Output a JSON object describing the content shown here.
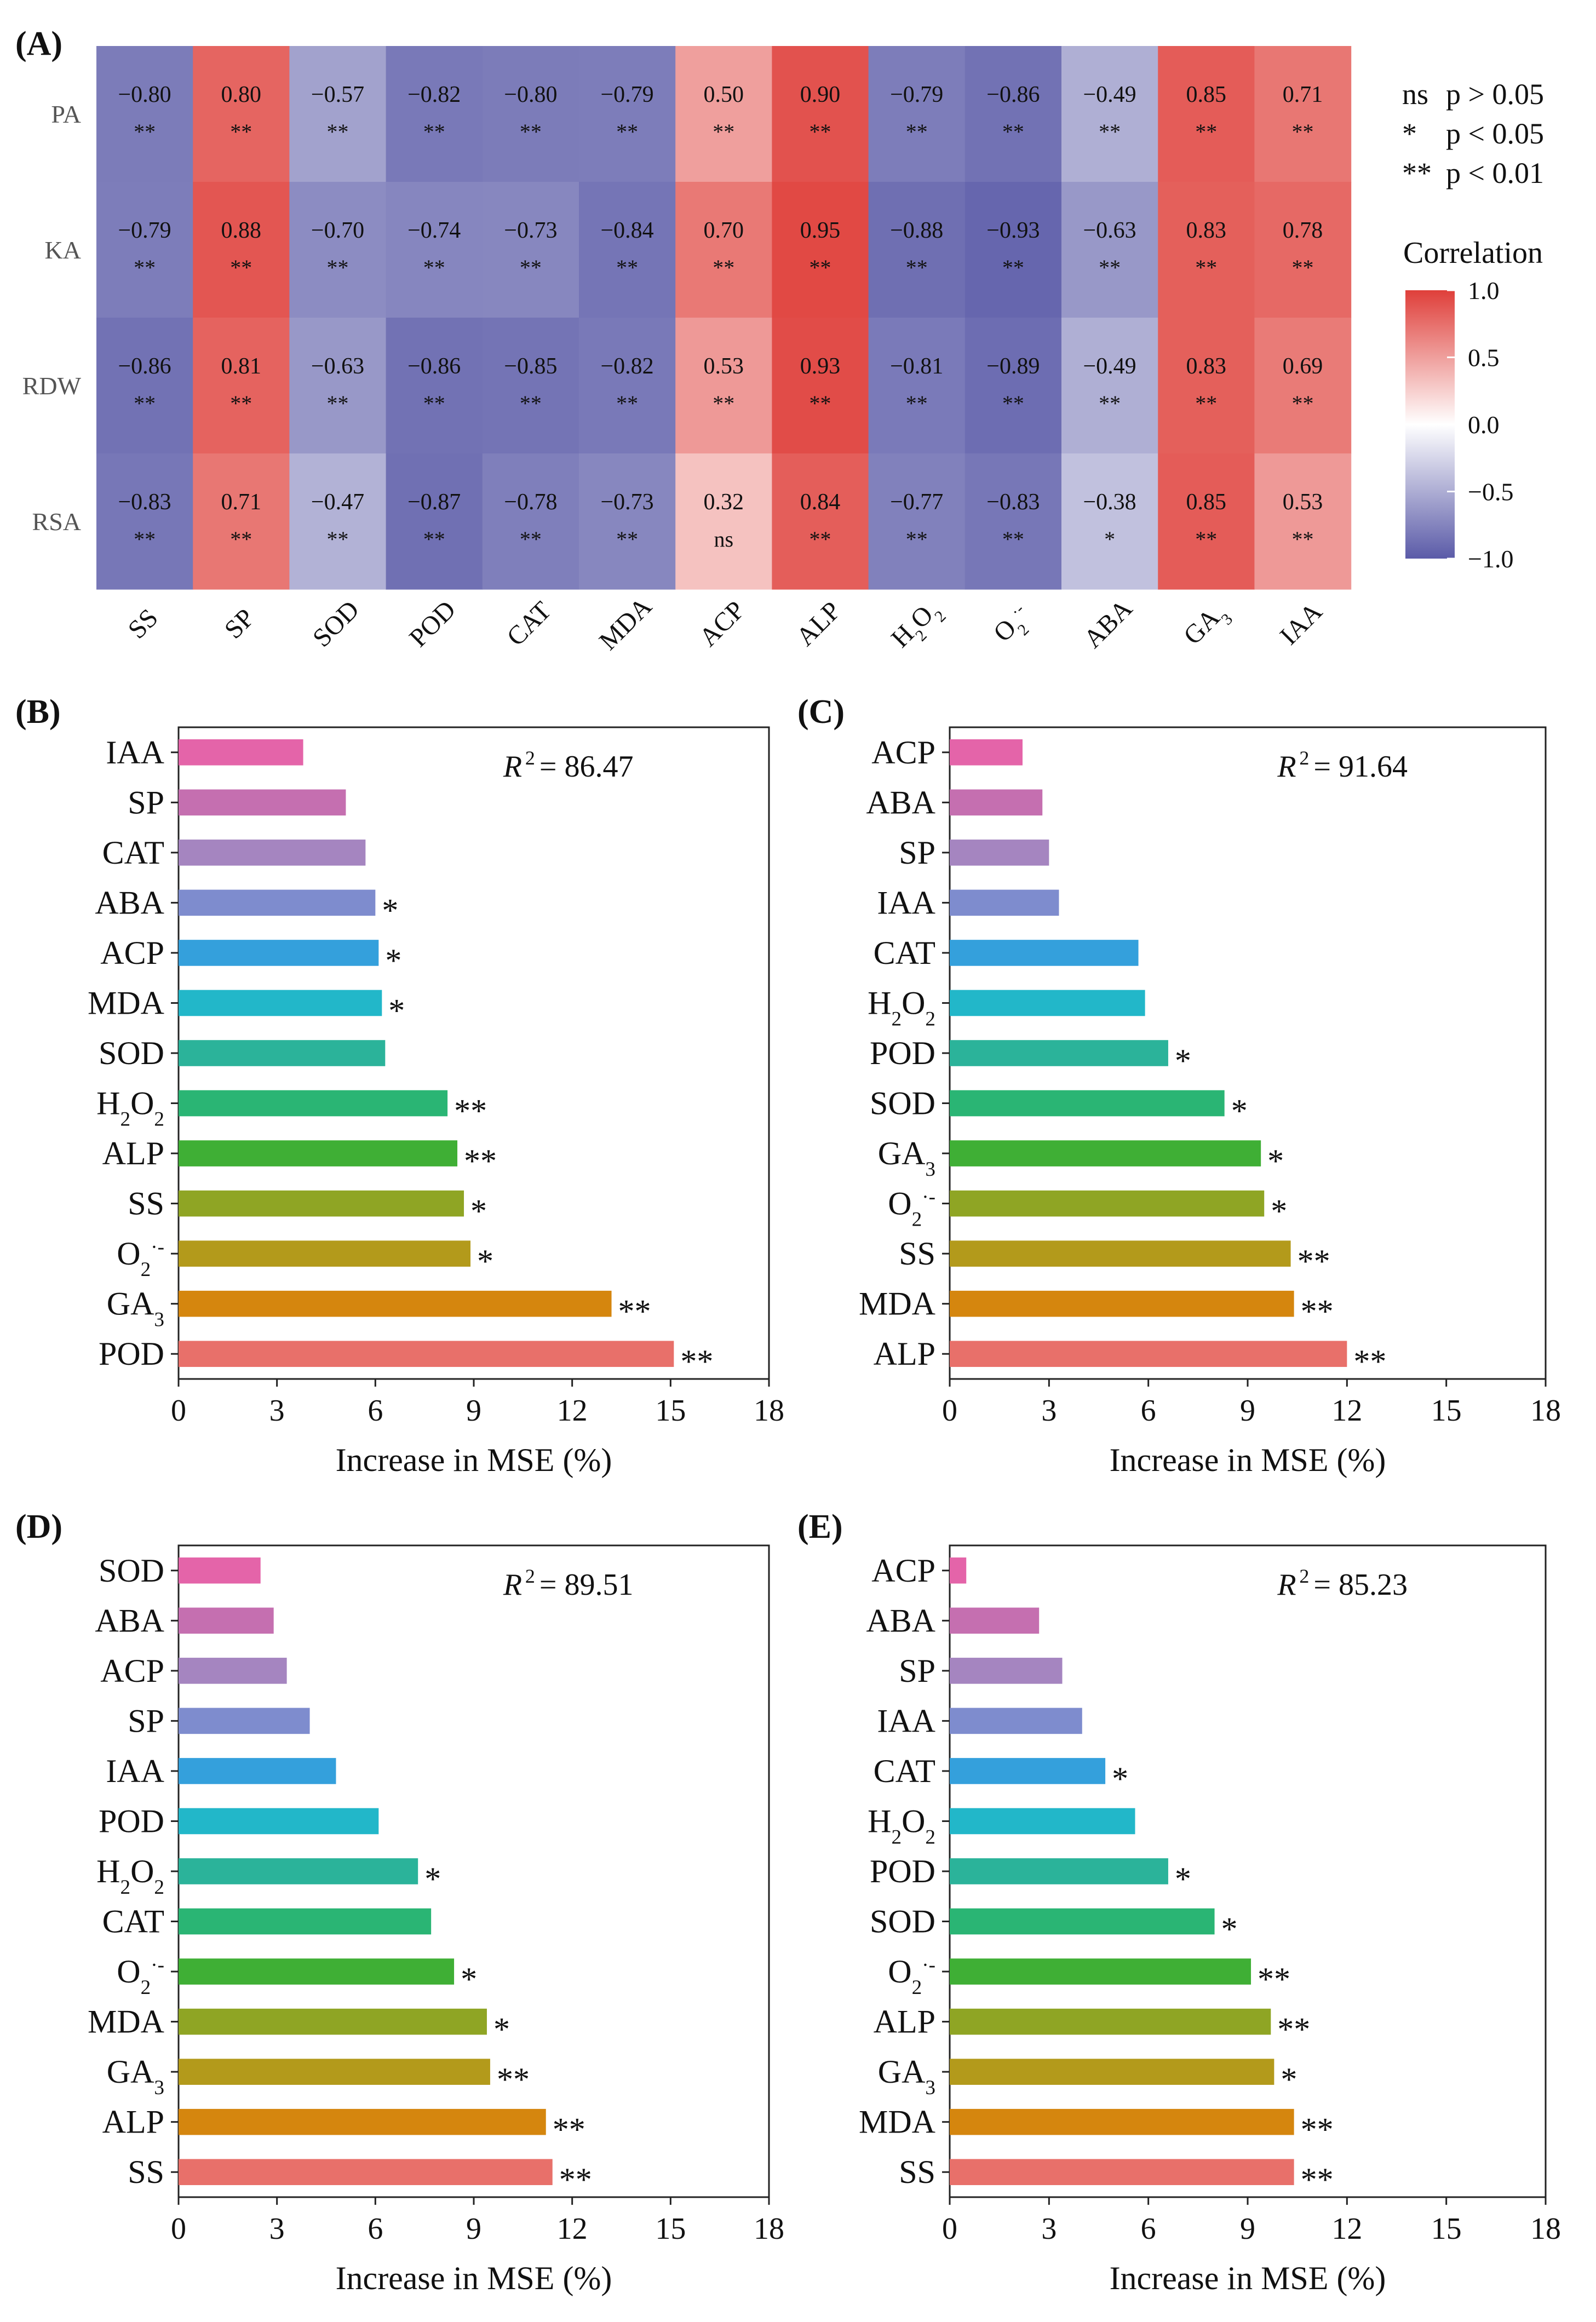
{
  "figure": {
    "panel_labels": [
      "(A)",
      "(B)",
      "(C)",
      "(D)",
      "(E)"
    ]
  },
  "chart_data": [
    {
      "panel": "(A)",
      "type": "heatmap",
      "rows": [
        "PA",
        "KA",
        "RDW",
        "RSA"
      ],
      "columns": [
        "SS",
        "SP",
        "SOD",
        "POD",
        "CAT",
        "MDA",
        "ACP",
        "ALP",
        "H2O2",
        "O2·-",
        "ABA",
        "GA3",
        "IAA"
      ],
      "values": [
        [
          -0.8,
          0.8,
          -0.57,
          -0.82,
          -0.8,
          -0.79,
          0.5,
          0.9,
          -0.79,
          -0.86,
          -0.49,
          0.85,
          0.71
        ],
        [
          -0.79,
          0.88,
          -0.7,
          -0.74,
          -0.73,
          -0.84,
          0.7,
          0.95,
          -0.88,
          -0.93,
          -0.63,
          0.83,
          0.78
        ],
        [
          -0.86,
          0.81,
          -0.63,
          -0.86,
          -0.85,
          -0.82,
          0.53,
          0.93,
          -0.81,
          -0.89,
          -0.49,
          0.83,
          0.69
        ],
        [
          -0.83,
          0.71,
          -0.47,
          -0.87,
          -0.78,
          -0.73,
          0.32,
          0.84,
          -0.77,
          -0.83,
          -0.38,
          0.85,
          0.53
        ]
      ],
      "value_labels": [
        [
          "−0.80",
          "0.80",
          "−0.57",
          "−0.82",
          "−0.80",
          "−0.79",
          "0.50",
          "0.90",
          "−0.79",
          "−0.86",
          "−0.49",
          "0.85",
          "0.71"
        ],
        [
          "−0.79",
          "0.88",
          "−0.70",
          "−0.74",
          "−0.73",
          "−0.84",
          "0.70",
          "0.95",
          "−0.88",
          "−0.93",
          "−0.63",
          "0.83",
          "0.78"
        ],
        [
          "−0.86",
          "0.81",
          "−0.63",
          "−0.86",
          "−0.85",
          "−0.82",
          "0.53",
          "0.93",
          "−0.81",
          "−0.89",
          "−0.49",
          "0.83",
          "0.69"
        ],
        [
          "−0.83",
          "0.71",
          "−0.47",
          "−0.87",
          "−0.78",
          "−0.73",
          "0.32",
          "0.84",
          "−0.77",
          "−0.83",
          "−0.38",
          "0.85",
          "0.53"
        ]
      ],
      "significance": [
        [
          "**",
          "**",
          "**",
          "**",
          "**",
          "**",
          "**",
          "**",
          "**",
          "**",
          "**",
          "**",
          "**"
        ],
        [
          "**",
          "**",
          "**",
          "**",
          "**",
          "**",
          "**",
          "**",
          "**",
          "**",
          "**",
          "**",
          "**"
        ],
        [
          "**",
          "**",
          "**",
          "**",
          "**",
          "**",
          "**",
          "**",
          "**",
          "**",
          "**",
          "**",
          "**"
        ],
        [
          "**",
          "**",
          "**",
          "**",
          "**",
          "**",
          "ns",
          "**",
          "**",
          "**",
          "*",
          "**",
          "**"
        ]
      ],
      "significance_legend": [
        {
          "symbol": "ns",
          "text": "p > 0.05"
        },
        {
          "symbol": "*",
          "text": "p < 0.05"
        },
        {
          "symbol": "**",
          "text": "p < 0.01"
        }
      ],
      "colorbar": {
        "title": "Correlation",
        "range": [
          -1.0,
          1.0
        ],
        "ticks": [
          "1.0",
          "0.5",
          "0.0",
          "−0.5",
          "−1.0"
        ],
        "tick_values": [
          1.0,
          0.5,
          0.0,
          -0.5,
          -1.0
        ],
        "colors": {
          "low": "#5b5ba8",
          "mid": "#ffffff",
          "high": "#df3f3a"
        }
      }
    },
    {
      "panel": "(B)",
      "type": "bar",
      "orientation": "horizontal",
      "categories": [
        "POD",
        "GA3",
        "O2·-",
        "SS",
        "ALP",
        "H2O2",
        "SOD",
        "MDA",
        "ACP",
        "ABA",
        "CAT",
        "SP",
        "IAA"
      ],
      "values": [
        15.1,
        13.2,
        8.9,
        8.7,
        8.5,
        8.2,
        6.3,
        6.2,
        6.1,
        6.0,
        5.7,
        5.1,
        3.8
      ],
      "significance": [
        "**",
        "**",
        "*",
        "*",
        "**",
        "**",
        "",
        "*",
        "*",
        "*",
        "",
        "",
        ""
      ],
      "annotation": {
        "r2_label": "R",
        "r2_sup": "2",
        "r2_value": "= 86.47"
      },
      "xlabel": "Increase in MSE (%)",
      "xlim": [
        0,
        18
      ],
      "xticks": [
        "0",
        "3",
        "6",
        "9",
        "12",
        "15",
        "18"
      ]
    },
    {
      "panel": "(C)",
      "type": "bar",
      "orientation": "horizontal",
      "categories": [
        "ALP",
        "MDA",
        "SS",
        "O2·-",
        "GA3",
        "SOD",
        "POD",
        "H2O2",
        "CAT",
        "IAA",
        "SP",
        "ABA",
        "ACP"
      ],
      "values": [
        12.0,
        10.4,
        10.3,
        9.5,
        9.4,
        8.3,
        6.6,
        5.9,
        5.7,
        3.3,
        3.0,
        2.8,
        2.2
      ],
      "significance": [
        "**",
        "**",
        "**",
        "*",
        "*",
        "*",
        "*",
        "",
        "",
        "",
        "",
        "",
        ""
      ],
      "annotation": {
        "r2_label": "R",
        "r2_sup": "2",
        "r2_value": "= 91.64"
      },
      "xlabel": "Increase in MSE (%)",
      "xlim": [
        0,
        18
      ],
      "xticks": [
        "0",
        "3",
        "6",
        "9",
        "12",
        "15",
        "18"
      ]
    },
    {
      "panel": "(D)",
      "type": "bar",
      "orientation": "horizontal",
      "categories": [
        "SS",
        "ALP",
        "GA3",
        "MDA",
        "O2·-",
        "CAT",
        "H2O2",
        "POD",
        "IAA",
        "SP",
        "ACP",
        "ABA",
        "SOD"
      ],
      "values": [
        11.4,
        11.2,
        9.5,
        9.4,
        8.4,
        7.7,
        7.3,
        6.1,
        4.8,
        4.0,
        3.3,
        2.9,
        2.5
      ],
      "significance": [
        "**",
        "**",
        "**",
        "*",
        "*",
        "",
        "*",
        "",
        "",
        "",
        "",
        "",
        ""
      ],
      "annotation": {
        "r2_label": "R",
        "r2_sup": "2",
        "r2_value": "= 89.51"
      },
      "xlabel": "Increase in MSE (%)",
      "xlim": [
        0,
        18
      ],
      "xticks": [
        "0",
        "3",
        "6",
        "9",
        "12",
        "15",
        "18"
      ]
    },
    {
      "panel": "(E)",
      "type": "bar",
      "orientation": "horizontal",
      "categories": [
        "SS",
        "MDA",
        "GA3",
        "ALP",
        "O2·-",
        "SOD",
        "POD",
        "H2O2",
        "CAT",
        "IAA",
        "SP",
        "ABA",
        "ACP"
      ],
      "values": [
        10.4,
        10.4,
        9.8,
        9.7,
        9.1,
        8.0,
        6.6,
        5.6,
        4.7,
        4.0,
        3.4,
        2.7,
        0.5
      ],
      "significance": [
        "**",
        "**",
        "*",
        "**",
        "**",
        "*",
        "*",
        "",
        "*",
        "",
        "",
        "",
        ""
      ],
      "annotation": {
        "r2_label": "R",
        "r2_sup": "2",
        "r2_value": "= 85.23"
      },
      "xlabel": "Increase in MSE (%)",
      "xlim": [
        0,
        18
      ],
      "xticks": [
        "0",
        "3",
        "6",
        "9",
        "12",
        "15",
        "18"
      ]
    }
  ],
  "bar_colors": [
    "#e8706a",
    "#d5860e",
    "#b39a1b",
    "#8fa524",
    "#3faf35",
    "#2ab574",
    "#2bb39a",
    "#22b7c9",
    "#34a0dc",
    "#7e8cce",
    "#a585c0",
    "#c56fb0",
    "#e464a9"
  ]
}
